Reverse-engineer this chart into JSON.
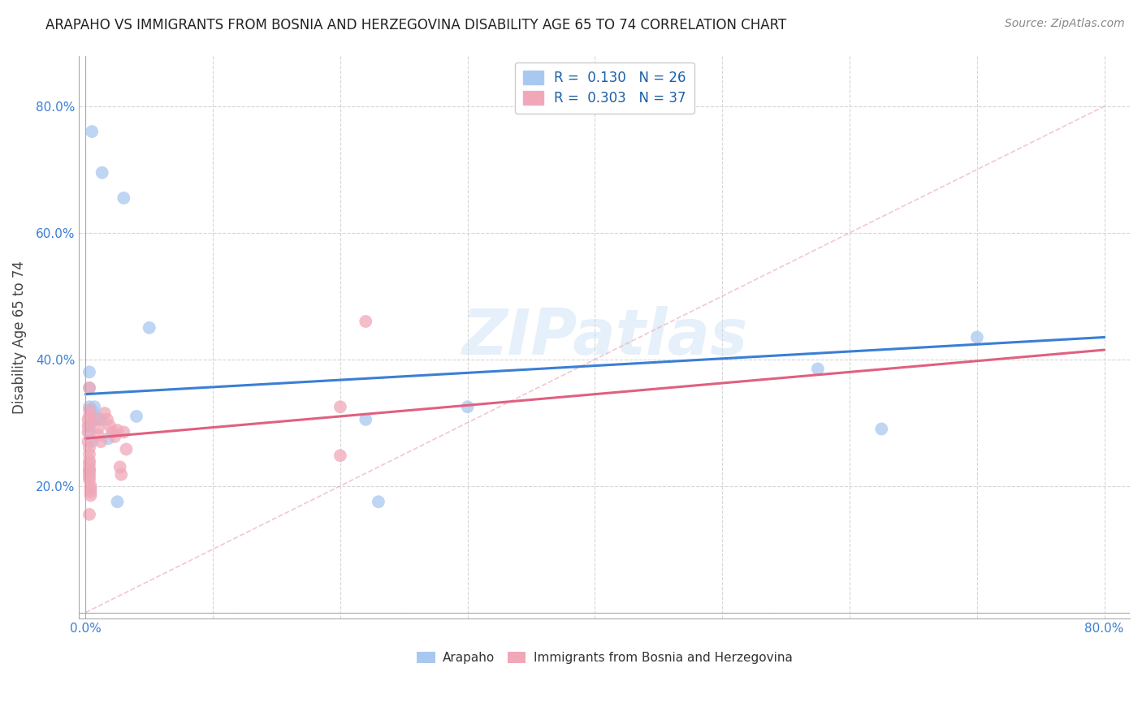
{
  "title": "ARAPAHO VS IMMIGRANTS FROM BOSNIA AND HERZEGOVINA DISABILITY AGE 65 TO 74 CORRELATION CHART",
  "source": "Source: ZipAtlas.com",
  "ylabel": "Disability Age 65 to 74",
  "xlim": [
    -0.005,
    0.82
  ],
  "ylim": [
    -0.01,
    0.88
  ],
  "xtick_positions": [
    0.0,
    0.1,
    0.2,
    0.3,
    0.4,
    0.5,
    0.6,
    0.7,
    0.8
  ],
  "xticklabels": [
    "0.0%",
    "",
    "",
    "",
    "",
    "",
    "",
    "",
    "80.0%"
  ],
  "ytick_positions": [
    0.0,
    0.2,
    0.4,
    0.6,
    0.8
  ],
  "yticklabels": [
    "",
    "20.0%",
    "40.0%",
    "60.0%",
    "80.0%"
  ],
  "arapaho_R": "0.130",
  "arapaho_N": "26",
  "bosnia_R": "0.303",
  "bosnia_N": "37",
  "arapaho_color": "#a8c8f0",
  "bosnia_color": "#f0a8b8",
  "arapaho_line_color": "#3a7fd5",
  "bosnia_line_color": "#e06080",
  "watermark": "ZIPatlas",
  "arapaho_x": [
    0.005,
    0.013,
    0.03,
    0.05,
    0.003,
    0.003,
    0.003,
    0.005,
    0.007,
    0.008,
    0.01,
    0.012,
    0.003,
    0.003,
    0.005,
    0.018,
    0.04,
    0.025,
    0.22,
    0.23,
    0.575,
    0.625,
    0.7,
    0.3,
    0.003,
    0.003
  ],
  "arapaho_y": [
    0.76,
    0.695,
    0.655,
    0.45,
    0.38,
    0.355,
    0.325,
    0.32,
    0.325,
    0.31,
    0.305,
    0.305,
    0.295,
    0.285,
    0.27,
    0.275,
    0.31,
    0.175,
    0.305,
    0.175,
    0.385,
    0.29,
    0.435,
    0.325,
    0.225,
    0.225
  ],
  "bosnia_x": [
    0.002,
    0.002,
    0.002,
    0.002,
    0.003,
    0.003,
    0.003,
    0.003,
    0.003,
    0.003,
    0.003,
    0.003,
    0.004,
    0.004,
    0.004,
    0.004,
    0.007,
    0.01,
    0.01,
    0.012,
    0.015,
    0.017,
    0.019,
    0.021,
    0.023,
    0.025,
    0.027,
    0.028,
    0.03,
    0.032,
    0.2,
    0.2,
    0.22,
    0.003,
    0.003,
    0.003,
    0.003
  ],
  "bosnia_y": [
    0.305,
    0.295,
    0.285,
    0.27,
    0.26,
    0.25,
    0.24,
    0.235,
    0.228,
    0.22,
    0.215,
    0.21,
    0.2,
    0.195,
    0.19,
    0.185,
    0.305,
    0.292,
    0.28,
    0.27,
    0.315,
    0.305,
    0.295,
    0.285,
    0.278,
    0.288,
    0.23,
    0.218,
    0.285,
    0.258,
    0.325,
    0.248,
    0.46,
    0.355,
    0.155,
    0.31,
    0.32
  ],
  "diag_line_color": "#f0a8b8",
  "trend_arapaho_x0": 0.0,
  "trend_arapaho_y0": 0.345,
  "trend_arapaho_x1": 0.8,
  "trend_arapaho_y1": 0.435,
  "trend_bosnia_x0": 0.0,
  "trend_bosnia_y0": 0.275,
  "trend_bosnia_x1": 0.8,
  "trend_bosnia_y1": 0.415
}
